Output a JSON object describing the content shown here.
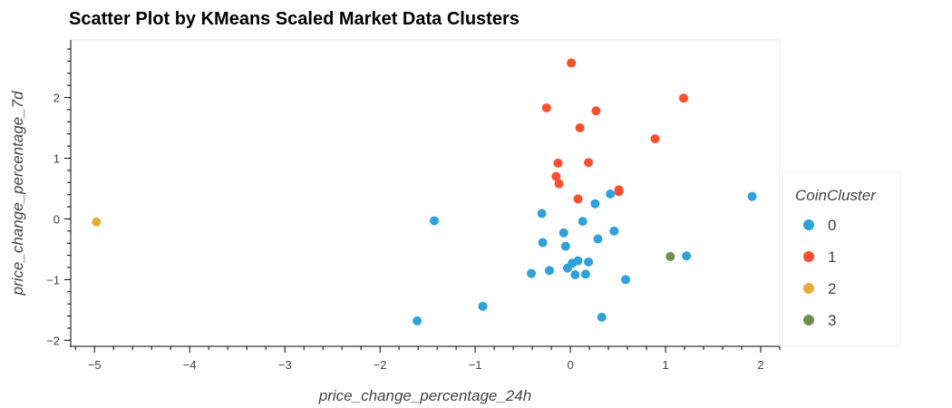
{
  "chart_data": {
    "type": "scatter",
    "title": "Scatter Plot by KMeans Scaled Market Data Clusters",
    "xlabel": "price_change_percentage_24h",
    "ylabel": "price_change_percentage_7d",
    "xlim": [
      -5.25,
      2.2
    ],
    "ylim": [
      -2.1,
      2.95
    ],
    "xticks": [
      -5,
      -4,
      -3,
      -2,
      -1,
      0,
      1,
      2
    ],
    "yticks": [
      -2,
      -1,
      0,
      1,
      2
    ],
    "grid": false,
    "legend": {
      "title": "CoinCluster",
      "position": "right"
    },
    "series": [
      {
        "name": "0",
        "color": "#30a2da",
        "points": [
          [
            -1.61,
            -1.68
          ],
          [
            -1.43,
            -0.03
          ],
          [
            -0.92,
            -1.44
          ],
          [
            -0.41,
            -0.9
          ],
          [
            -0.3,
            0.09
          ],
          [
            -0.29,
            -0.39
          ],
          [
            -0.22,
            -0.85
          ],
          [
            -0.07,
            -0.23
          ],
          [
            -0.05,
            -0.45
          ],
          [
            -0.03,
            -0.81
          ],
          [
            0.02,
            -0.73
          ],
          [
            0.05,
            -0.92
          ],
          [
            0.08,
            -0.69
          ],
          [
            0.13,
            -0.04
          ],
          [
            0.16,
            -0.91
          ],
          [
            0.19,
            -0.71
          ],
          [
            0.26,
            0.25
          ],
          [
            0.29,
            -0.33
          ],
          [
            0.33,
            -1.62
          ],
          [
            0.42,
            0.41
          ],
          [
            0.46,
            -0.2
          ],
          [
            0.58,
            -1.0
          ],
          [
            1.22,
            -0.61
          ],
          [
            1.91,
            0.37
          ]
        ]
      },
      {
        "name": "1",
        "color": "#fc4f30",
        "points": [
          [
            0.01,
            2.57
          ],
          [
            -0.25,
            1.83
          ],
          [
            0.27,
            1.78
          ],
          [
            1.19,
            1.99
          ],
          [
            0.1,
            1.5
          ],
          [
            0.89,
            1.32
          ],
          [
            -0.13,
            0.92
          ],
          [
            0.19,
            0.93
          ],
          [
            -0.15,
            0.7
          ],
          [
            -0.12,
            0.58
          ],
          [
            0.08,
            0.33
          ],
          [
            0.51,
            0.48
          ],
          [
            0.51,
            0.45
          ]
        ]
      },
      {
        "name": "2",
        "color": "#e5ae38",
        "points": [
          [
            -4.98,
            -0.05
          ]
        ]
      },
      {
        "name": "3",
        "color": "#6d904f",
        "points": [
          [
            1.05,
            -0.62
          ]
        ]
      }
    ]
  }
}
